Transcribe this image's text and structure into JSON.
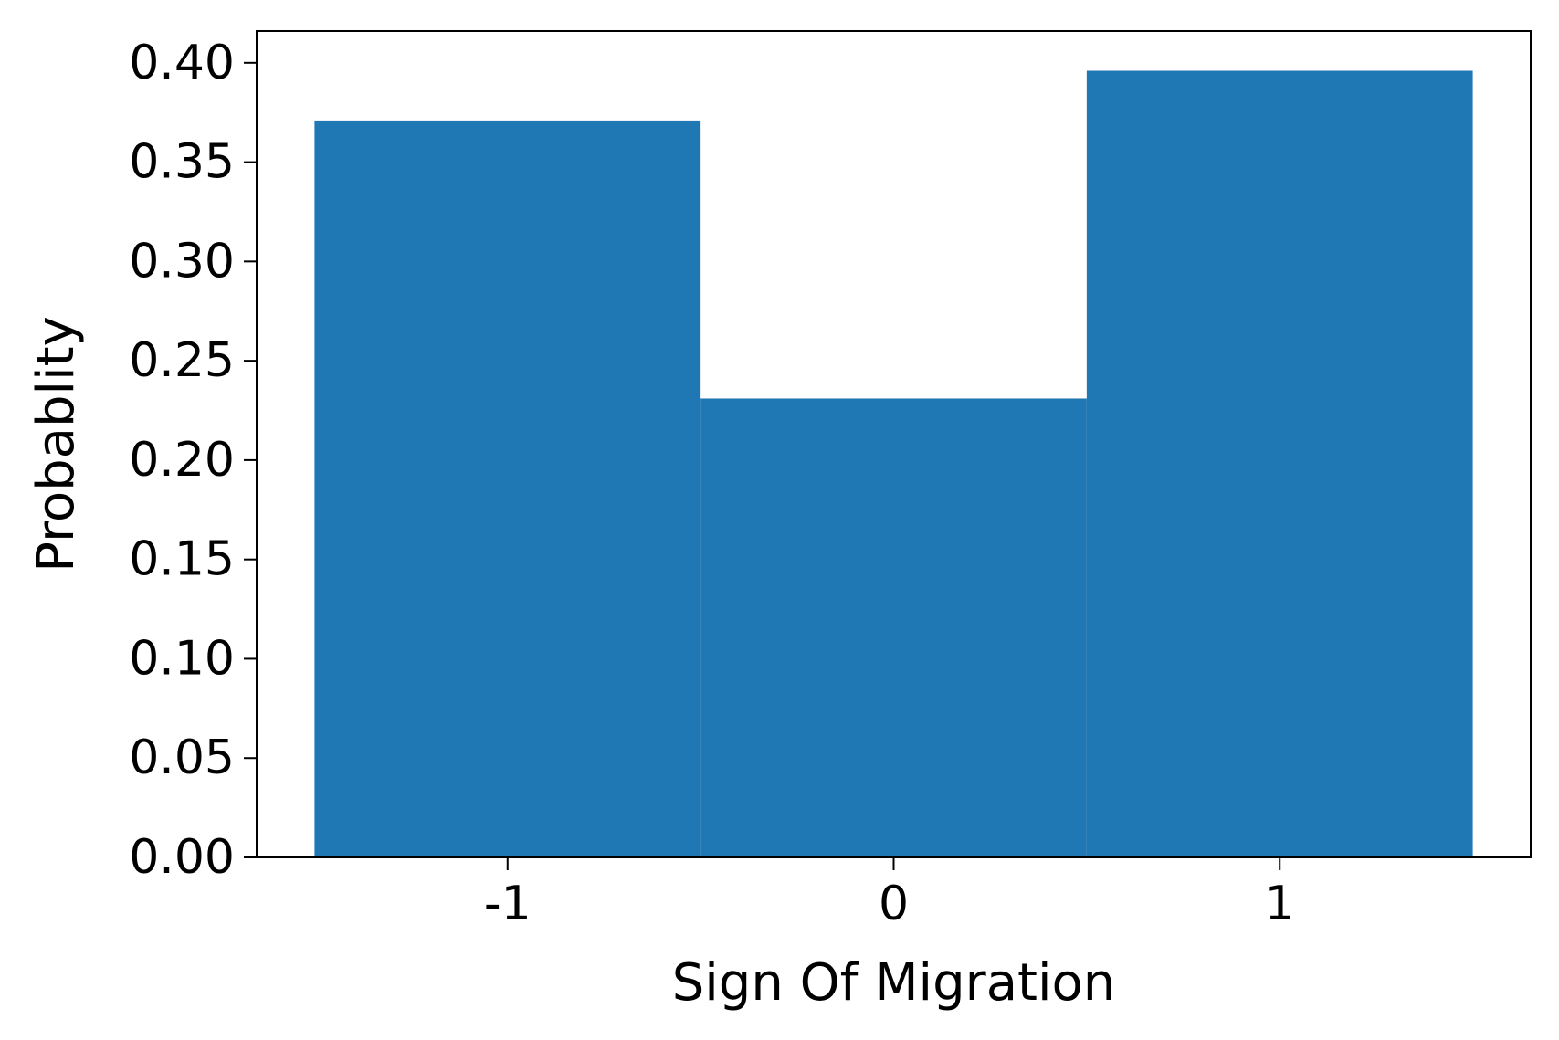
{
  "chart_data": {
    "type": "bar",
    "title": "",
    "xlabel": "Sign Of Migration",
    "ylabel": "Probablity",
    "categories": [
      "-1",
      "0",
      "1"
    ],
    "x": [
      -1,
      0,
      1
    ],
    "values": [
      0.371,
      0.231,
      0.396
    ],
    "bar_width": 1.0,
    "xlim": [
      -1.65,
      1.65
    ],
    "ylim": [
      0,
      0.416
    ],
    "yticks": [
      0.0,
      0.05,
      0.1,
      0.15,
      0.2,
      0.25,
      0.3,
      0.35,
      0.4
    ],
    "ytick_labels": [
      "0.00",
      "0.05",
      "0.10",
      "0.15",
      "0.20",
      "0.25",
      "0.30",
      "0.35",
      "0.40"
    ],
    "xticks": [
      -1,
      0,
      1
    ],
    "xtick_labels": [
      "-1",
      "0",
      "1"
    ],
    "bar_color": "#1f77b4",
    "grid": false,
    "legend": "none"
  }
}
